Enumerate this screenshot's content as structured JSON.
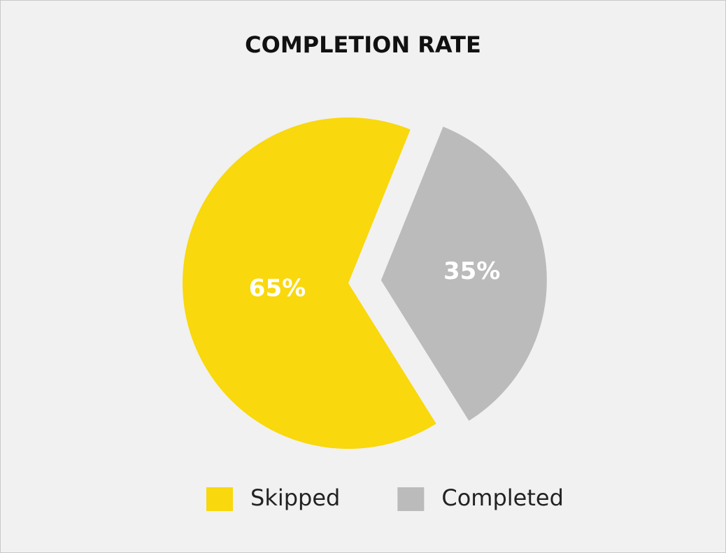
{
  "chart_data": {
    "type": "pie",
    "title": "COMPLETION RATE",
    "categories": [
      "Skipped",
      "Completed"
    ],
    "values": [
      65,
      35
    ],
    "value_labels": [
      "65%",
      "35%"
    ],
    "colors": [
      "#f9d80d",
      "#bbbbbb"
    ],
    "explode": [
      false,
      true
    ],
    "legend": "bottom"
  }
}
